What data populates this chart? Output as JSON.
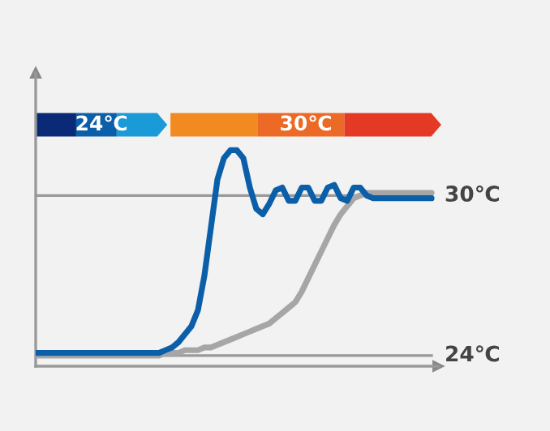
{
  "chart_data": {
    "type": "line",
    "categories": [
      null,
      null,
      null,
      null,
      null,
      null,
      null,
      null,
      null,
      null,
      null,
      null,
      null,
      null,
      null,
      null,
      null,
      null,
      null,
      null,
      null,
      null,
      null,
      null,
      null,
      null,
      null,
      null,
      null,
      null,
      null,
      null,
      null,
      null,
      null,
      null,
      null,
      null,
      null,
      null,
      null,
      null,
      null,
      null,
      null,
      null,
      null,
      null,
      null,
      null,
      null,
      null,
      null,
      null,
      null,
      null,
      null,
      null,
      null,
      null,
      null,
      null
    ],
    "series": [
      {
        "color": "#a6a6a6",
        "values": [
          24.0,
          24.0,
          24.0,
          24.0,
          24.0,
          24.0,
          24.0,
          24.0,
          24.0,
          24.0,
          24.0,
          24.0,
          24.0,
          24.0,
          24.0,
          24.0,
          24.0,
          24.0,
          24.0,
          24.0,
          24.1,
          24.1,
          24.1,
          24.2,
          24.2,
          24.2,
          24.3,
          24.3,
          24.4,
          24.5,
          24.6,
          24.7,
          24.8,
          24.9,
          25.0,
          25.1,
          25.2,
          25.4,
          25.6,
          25.8,
          26.0,
          26.4,
          26.9,
          27.4,
          27.9,
          28.4,
          28.9,
          29.3,
          29.6,
          29.9,
          30.0,
          30.1,
          30.1,
          30.1,
          30.1,
          30.1,
          30.1,
          30.1,
          30.1,
          30.1,
          30.1,
          30.1
        ]
      },
      {
        "color": "#0b5fa8",
        "values": [
          24.1,
          24.1,
          24.1,
          24.1,
          24.1,
          24.1,
          24.1,
          24.1,
          24.1,
          24.1,
          24.1,
          24.1,
          24.1,
          24.1,
          24.1,
          24.1,
          24.1,
          24.1,
          24.1,
          24.1,
          24.2,
          24.3,
          24.5,
          24.8,
          25.1,
          25.7,
          27.0,
          28.8,
          30.6,
          31.4,
          31.7,
          31.7,
          31.4,
          30.3,
          29.5,
          29.3,
          29.7,
          30.2,
          30.3,
          29.8,
          29.8,
          30.3,
          30.3,
          29.8,
          29.8,
          30.3,
          30.4,
          29.9,
          29.8,
          30.3,
          30.3,
          30.0,
          29.9,
          29.9,
          29.9,
          29.9,
          29.9,
          29.9,
          29.9,
          29.9,
          29.9,
          29.9
        ]
      }
    ],
    "ylim": [
      23.6,
      34.6
    ],
    "ref_lines": [
      {
        "axis": "y",
        "value": 30,
        "label": "30℃",
        "color": "#999999"
      },
      {
        "axis": "y",
        "value": 24,
        "label": "24℃",
        "color": "#999999"
      }
    ],
    "annotations": [
      "24℃",
      "30℃"
    ],
    "tick_labels": false,
    "grid": false,
    "legend": false,
    "marker": "none",
    "line_style": "solid"
  }
}
